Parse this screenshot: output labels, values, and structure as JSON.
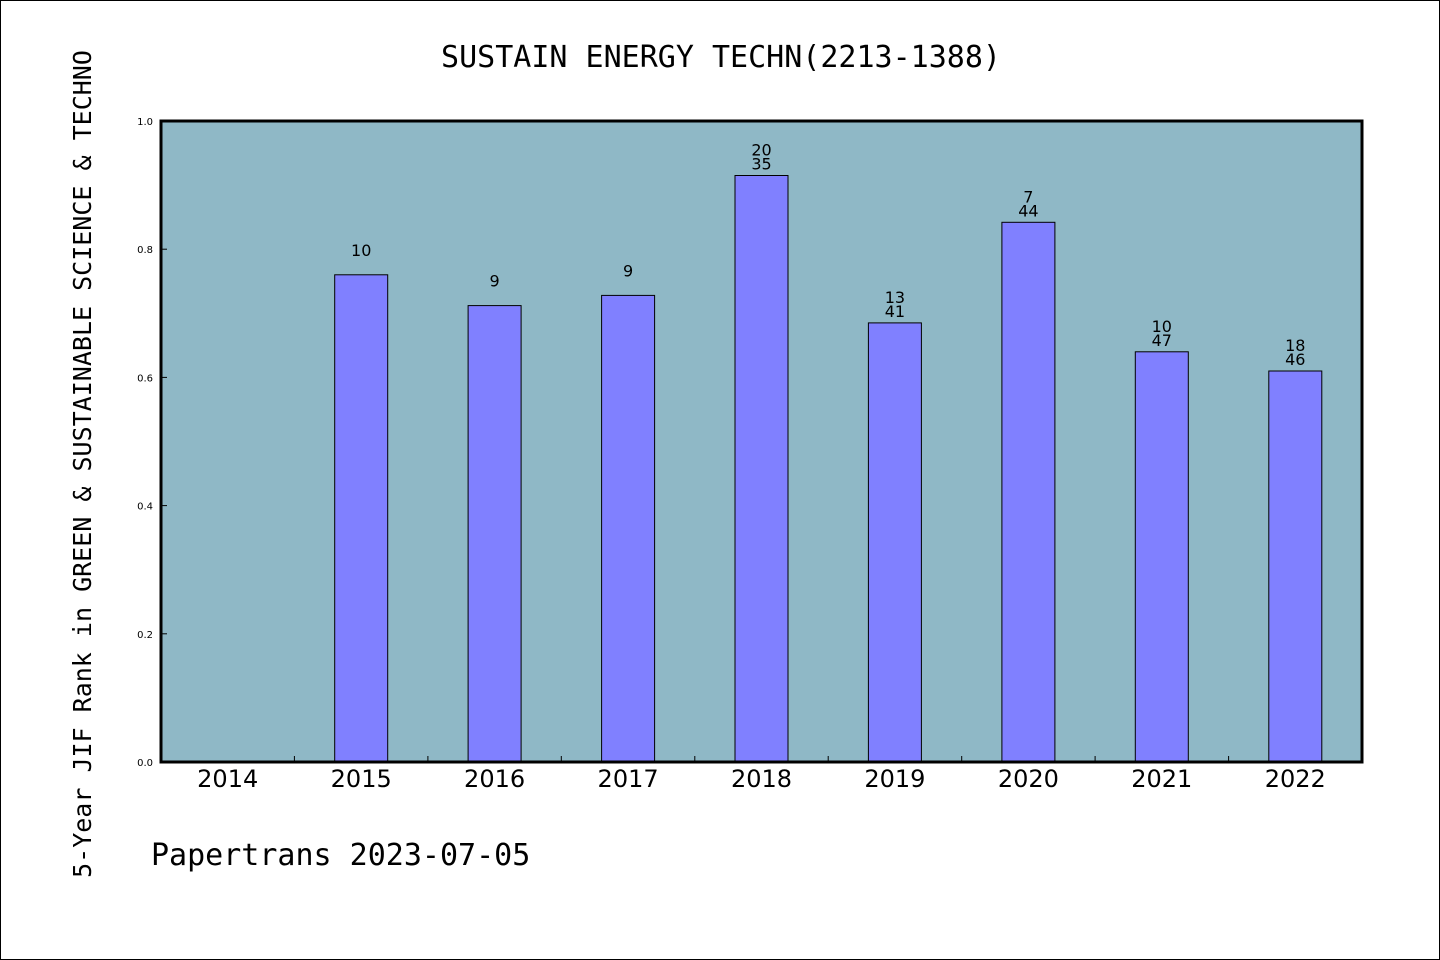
{
  "chart_data": {
    "type": "bar",
    "title": "SUSTAIN ENERGY TECHN(2213-1388)",
    "xlabel": "",
    "ylabel": "5-Year JIF Rank in GREEN & SUSTAINABLE SCIENCE & TECHNO",
    "ylim": [
      0,
      1.0
    ],
    "yticks": [
      "0.0",
      "0.2",
      "0.4",
      "0.6",
      "0.8",
      "1.0"
    ],
    "categories": [
      "2014",
      "2015",
      "2016",
      "2017",
      "2018",
      "2019",
      "2020",
      "2021",
      "2022"
    ],
    "values": [
      null,
      0.76,
      0.712,
      0.728,
      0.915,
      0.685,
      0.842,
      0.64,
      0.61
    ],
    "bar_labels": [
      [],
      [
        "10"
      ],
      [
        "9"
      ],
      [
        "9"
      ],
      [
        "20",
        "35"
      ],
      [
        "13",
        "41"
      ],
      [
        "7",
        "44"
      ],
      [
        "10",
        "47"
      ],
      [
        "18",
        "46"
      ]
    ],
    "grid": false,
    "colors": {
      "plot_background": "#8fb8c6",
      "bar_fill": "#8080ff",
      "bar_stroke": "#000000"
    }
  },
  "footer": "Papertrans 2023-07-05"
}
